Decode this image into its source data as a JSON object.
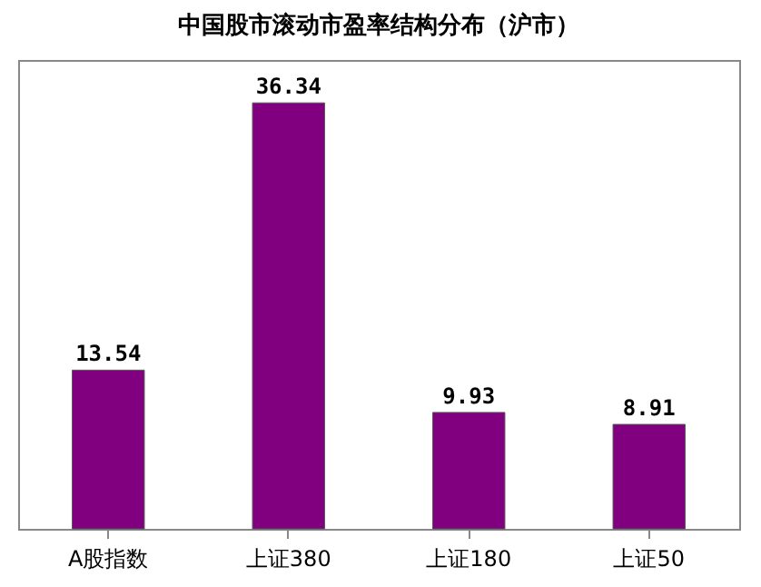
{
  "chart_data": {
    "type": "bar",
    "title": "中国股市滚动市盈率结构分布（沪市）",
    "categories": [
      "A股指数",
      "上证380",
      "上证180",
      "上证50"
    ],
    "values": [
      13.54,
      36.34,
      9.93,
      8.91
    ],
    "color": "#800080",
    "data_labels": true
  }
}
